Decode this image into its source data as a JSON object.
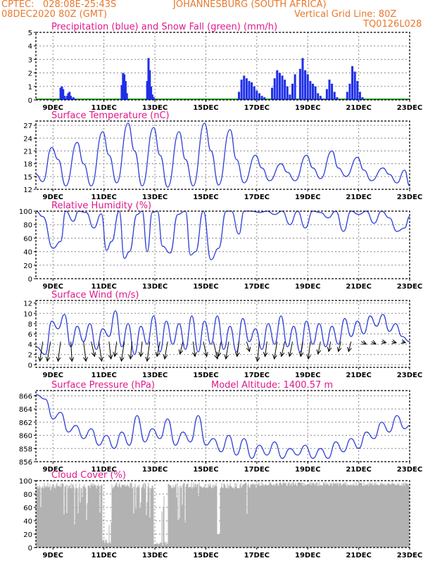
{
  "header": {
    "line1_left": "CPTEC:   028:08E-25:43S",
    "line1_right": "JOHANNESBURG (SOUTH AFRICA)",
    "line2_left": "08DEC2020 80Z (GMT)",
    "line2_right": "Vertical Grid Line: 80Z",
    "code": "TQ0126L028"
  },
  "colors": {
    "header": "#e8792d",
    "title": "#e0188c",
    "line": "#2f3fd8",
    "bar": "#1f2fe8",
    "snow": "#1a9a1a",
    "cloud": "#b2b2b2",
    "arrow": "#000000"
  },
  "x_ticks": [
    "9DEC",
    "11DEC",
    "13DEC",
    "15DEC",
    "17DEC",
    "19DEC",
    "21DEC",
    "23DEC"
  ],
  "chart_data": [
    {
      "id": "precip",
      "type": "bar",
      "title": "Precipitation (blue) and Snow Fall (green) (mm/h)",
      "yticks": [
        0,
        1,
        2,
        3,
        4,
        5
      ],
      "ylim": [
        0,
        5
      ],
      "xlim": [
        8.33,
        23.0
      ],
      "series": [
        {
          "values_x": [
            9.3,
            9.35,
            9.4,
            9.45,
            9.5,
            9.55,
            9.6,
            9.65,
            9.7,
            9.75,
            9.8,
            9.85,
            11.7,
            11.75,
            11.8,
            11.85,
            11.9,
            12.7,
            12.75,
            12.8,
            12.85,
            12.9,
            12.95,
            13.0,
            16.3,
            16.4,
            16.5,
            16.6,
            16.7,
            16.8,
            16.9,
            17.0,
            17.1,
            17.2,
            17.3,
            17.6,
            17.7,
            17.8,
            17.9,
            18.0,
            18.1,
            18.2,
            18.3,
            18.4,
            18.5,
            18.7,
            18.8,
            18.9,
            19.0,
            19.1,
            19.2,
            19.3,
            19.4,
            19.5,
            19.6,
            19.75,
            19.85,
            19.95,
            20.05,
            20.15,
            20.55,
            20.65,
            20.75,
            20.85,
            20.95,
            21.05,
            21.15
          ],
          "values": [
            0.9,
            1.0,
            0.8,
            0.3,
            0.1,
            0.3,
            0.5,
            0.6,
            0.3,
            0.1,
            0.2,
            0.1,
            1.1,
            2.0,
            1.9,
            1.4,
            0.5,
            1.4,
            3.1,
            2.2,
            1.0,
            0.4,
            0.2,
            0.1,
            0.6,
            1.5,
            1.8,
            1.6,
            1.4,
            1.3,
            1.0,
            0.7,
            0.5,
            0.3,
            0.2,
            0.9,
            1.6,
            2.2,
            2.0,
            1.8,
            1.5,
            1.0,
            0.4,
            1.2,
            1.9,
            2.3,
            3.1,
            2.2,
            1.9,
            1.4,
            1.2,
            1.0,
            0.5,
            0.3,
            0.1,
            0.8,
            1.5,
            1.2,
            0.6,
            0.2,
            0.6,
            1.2,
            2.5,
            2.1,
            1.4,
            0.6,
            0.2
          ]
        }
      ]
    },
    {
      "id": "temp",
      "type": "line",
      "title": "Surface Temperature (nC)",
      "yticks": [
        12,
        15,
        18,
        21,
        24,
        27
      ],
      "ylim": [
        12,
        28
      ],
      "xlim": [
        8.33,
        23.0
      ],
      "x": [
        8.33,
        8.6,
        8.95,
        9.2,
        9.5,
        9.95,
        10.2,
        10.5,
        10.95,
        11.2,
        11.5,
        11.95,
        12.2,
        12.5,
        12.95,
        13.2,
        13.5,
        13.95,
        14.2,
        14.5,
        14.95,
        15.2,
        15.5,
        15.95,
        16.2,
        16.5,
        16.95,
        17.2,
        17.5,
        17.95,
        18.2,
        18.5,
        18.95,
        19.2,
        19.5,
        19.95,
        20.2,
        20.5,
        20.95,
        21.2,
        21.5,
        21.95,
        22.2,
        22.5,
        22.8,
        23.0
      ],
      "values": [
        15.5,
        13.8,
        21.8,
        19,
        12.8,
        23,
        18,
        12.8,
        25.5,
        20,
        13.5,
        27.5,
        21,
        12.8,
        26.5,
        20,
        12.5,
        25.5,
        19,
        12.8,
        27.5,
        21,
        13,
        26,
        19,
        13.5,
        20,
        17,
        14,
        18,
        16,
        14,
        20,
        17,
        14.5,
        21,
        17,
        15,
        19.5,
        16.5,
        14,
        17,
        15.5,
        13.5,
        16.5,
        12.8
      ]
    },
    {
      "id": "rh",
      "type": "line",
      "title": "Relative Humidity (%)",
      "yticks": [
        0,
        20,
        40,
        60,
        80,
        100
      ],
      "ylim": [
        0,
        100
      ],
      "xlim": [
        8.33,
        23.0
      ],
      "x": [
        8.33,
        8.6,
        9.0,
        9.3,
        9.5,
        9.8,
        10.0,
        10.3,
        10.6,
        10.9,
        11.1,
        11.3,
        11.6,
        11.8,
        12.0,
        12.3,
        12.5,
        12.7,
        12.9,
        13.1,
        13.3,
        13.6,
        13.9,
        14.2,
        14.4,
        14.6,
        14.9,
        15.2,
        15.5,
        15.8,
        16.0,
        16.3,
        16.5,
        16.8,
        17.1,
        17.4,
        17.7,
        18.0,
        18.3,
        18.6,
        18.9,
        19.2,
        19.5,
        19.8,
        20.1,
        20.4,
        20.7,
        21.0,
        21.3,
        21.6,
        21.9,
        22.2,
        22.5,
        22.8,
        23.0
      ],
      "values": [
        100,
        92,
        45,
        55,
        100,
        85,
        100,
        98,
        75,
        96,
        42,
        55,
        100,
        30,
        40,
        95,
        100,
        40,
        98,
        100,
        48,
        38,
        95,
        100,
        35,
        40,
        100,
        28,
        45,
        100,
        100,
        66,
        100,
        100,
        98,
        100,
        95,
        100,
        80,
        100,
        75,
        100,
        98,
        90,
        100,
        70,
        100,
        95,
        100,
        82,
        100,
        90,
        70,
        75,
        92
      ]
    },
    {
      "id": "wind",
      "type": "line",
      "title": "Surface Wind (m/s)",
      "yticks": [
        0,
        2,
        4,
        6,
        8,
        10,
        12
      ],
      "ylim": [
        -0.5,
        12.5
      ],
      "xlim": [
        8.33,
        23.0
      ],
      "x": [
        8.33,
        8.7,
        8.95,
        9.2,
        9.45,
        9.7,
        9.95,
        10.2,
        10.45,
        10.7,
        10.95,
        11.2,
        11.45,
        11.7,
        11.95,
        12.2,
        12.45,
        12.7,
        12.95,
        13.2,
        13.45,
        13.7,
        13.95,
        14.2,
        14.45,
        14.7,
        14.95,
        15.2,
        15.45,
        15.7,
        15.95,
        16.2,
        16.45,
        16.7,
        16.95,
        17.2,
        17.45,
        17.7,
        17.95,
        18.2,
        18.45,
        18.7,
        18.95,
        19.2,
        19.45,
        19.7,
        19.95,
        20.2,
        20.45,
        20.7,
        20.95,
        21.2,
        21.45,
        21.7,
        21.95,
        22.2,
        22.45,
        22.7,
        23.0
      ],
      "values": [
        3.5,
        2,
        8.5,
        7,
        9.8,
        3.5,
        7.5,
        4.5,
        8,
        3,
        7,
        5.5,
        10.5,
        3.5,
        8,
        2,
        7.5,
        4,
        9.5,
        2.5,
        8.5,
        4,
        8,
        3,
        9.5,
        2.5,
        8.5,
        4,
        9.5,
        3,
        7.5,
        2.5,
        9,
        4.5,
        7,
        3,
        8,
        4,
        9.5,
        3.5,
        7.5,
        2.5,
        8.5,
        4,
        8,
        3.5,
        7.5,
        4,
        9,
        5.5,
        8.5,
        6,
        9.5,
        7.5,
        9.8,
        6.5,
        8,
        5.5,
        4.5
      ],
      "arrow_x": [
        8.6,
        8.9,
        9.3,
        9.7,
        10.2,
        10.5,
        10.8,
        11.2,
        11.5,
        11.8,
        12.1,
        12.5,
        12.8,
        13.2,
        13.5,
        14.1,
        14.5,
        14.9,
        15.3,
        15.6,
        15.9,
        16.3,
        16.6,
        17.1,
        17.4,
        17.8,
        18.1,
        18.4,
        18.8,
        19.1,
        19.5,
        19.9,
        20.3,
        20.7,
        21.1,
        21.5,
        21.9,
        22.3,
        22.7
      ],
      "arrow_u": [
        -0.9,
        -0.8,
        -0.6,
        0.3,
        0.5,
        0.7,
        0.6,
        0.4,
        -0.4,
        -0.6,
        -0.3,
        -0.3,
        -0.7,
        -0.6,
        -0.6,
        -0.6,
        0.4,
        0.7,
        0.8,
        -0.6,
        -0.6,
        -0.4,
        0.6,
        -0.4,
        -0.4,
        -0.6,
        -0.7,
        -0.6,
        -0.4,
        -0.4,
        -0.5,
        -0.4,
        -0.5,
        -0.5,
        1.0,
        0.9,
        0.9,
        0.9,
        0.7
      ],
      "arrow_v": [
        -6,
        -5,
        -4.5,
        -5,
        -4,
        -3,
        -4,
        -3.5,
        -3,
        -4,
        -3.5,
        -3,
        -5,
        -3,
        -3.5,
        -2.5,
        -3,
        -3,
        -3.5,
        -3,
        -3.5,
        -3,
        -2,
        -4,
        -3,
        -3.5,
        -3,
        -3,
        -3,
        -3.5,
        -2.5,
        -2,
        -2,
        -2,
        -0.5,
        -0.5,
        -0.2,
        -0.2,
        -0.2
      ]
    },
    {
      "id": "pres",
      "type": "line",
      "title": "Surface Pressure (hPa)",
      "extra_label": "Model Altitude: 1400.57 m",
      "yticks": [
        856,
        858,
        860,
        862,
        864,
        866
      ],
      "ylim": [
        856,
        866.8
      ],
      "xlim": [
        8.33,
        23.0
      ],
      "x": [
        8.33,
        8.7,
        9.0,
        9.3,
        9.6,
        9.9,
        10.2,
        10.5,
        10.8,
        11.1,
        11.4,
        11.7,
        12.0,
        12.3,
        12.6,
        12.9,
        13.2,
        13.5,
        13.8,
        14.1,
        14.4,
        14.7,
        15.0,
        15.3,
        15.6,
        15.9,
        16.2,
        16.5,
        16.8,
        17.1,
        17.4,
        17.7,
        18.0,
        18.3,
        18.6,
        18.9,
        19.2,
        19.5,
        19.8,
        20.1,
        20.4,
        20.7,
        21.0,
        21.3,
        21.6,
        21.9,
        22.2,
        22.5,
        22.8,
        23.0
      ],
      "values": [
        866.2,
        865.5,
        862.5,
        863.5,
        860.5,
        861.5,
        859.5,
        861,
        858.5,
        860,
        858,
        860.5,
        858.5,
        863,
        859,
        861,
        859.5,
        862.5,
        858.5,
        860.5,
        859,
        863,
        858.5,
        859.5,
        857.5,
        860,
        857,
        859.5,
        856.5,
        858.5,
        857,
        859,
        856.5,
        858,
        857,
        858.5,
        856.5,
        858,
        856.5,
        859,
        857.5,
        859.5,
        858,
        860.5,
        859.5,
        862,
        860.5,
        863,
        861,
        861.5
      ]
    },
    {
      "id": "cloud",
      "type": "bar",
      "title": "Cloud Cover (%)",
      "yticks": [
        0,
        20,
        40,
        60,
        80,
        100
      ],
      "ylim": [
        0,
        100
      ],
      "xlim": [
        8.33,
        23.0
      ],
      "note": "cloud cover near 85-98% across period with gaps near 11.0-11.3, 13.0-13.5 and dips near 9.7, 12.6, 15.5"
    }
  ]
}
